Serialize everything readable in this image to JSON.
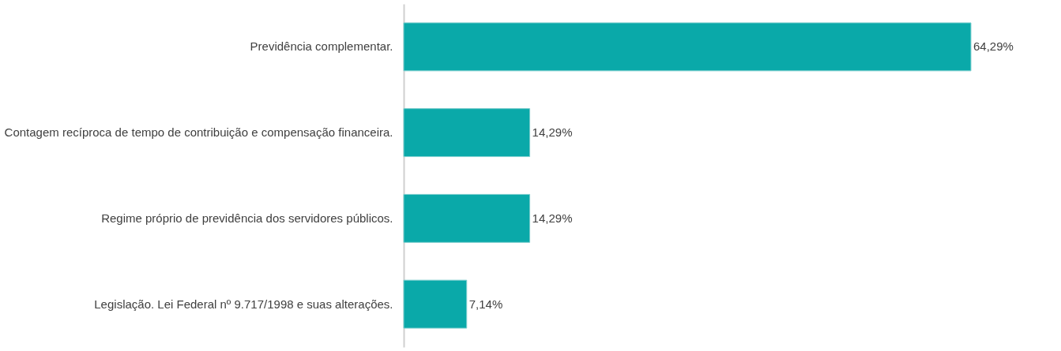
{
  "chart_data": {
    "type": "bar",
    "orientation": "horizontal",
    "categories": [
      "Previdência complementar.",
      "Contagem recíproca de tempo de contribuição e compensação financeira.",
      "Regime próprio de previdência dos servidores públicos.",
      "Legislação. Lei Federal nº 9.717/1998 e suas alterações."
    ],
    "values": [
      64.29,
      14.29,
      14.29,
      7.14
    ],
    "value_labels": [
      "64,29%",
      "14,29%",
      "14,29%",
      "7,14%"
    ],
    "color": "#0aa9a9",
    "tick_labels": "y"
  }
}
